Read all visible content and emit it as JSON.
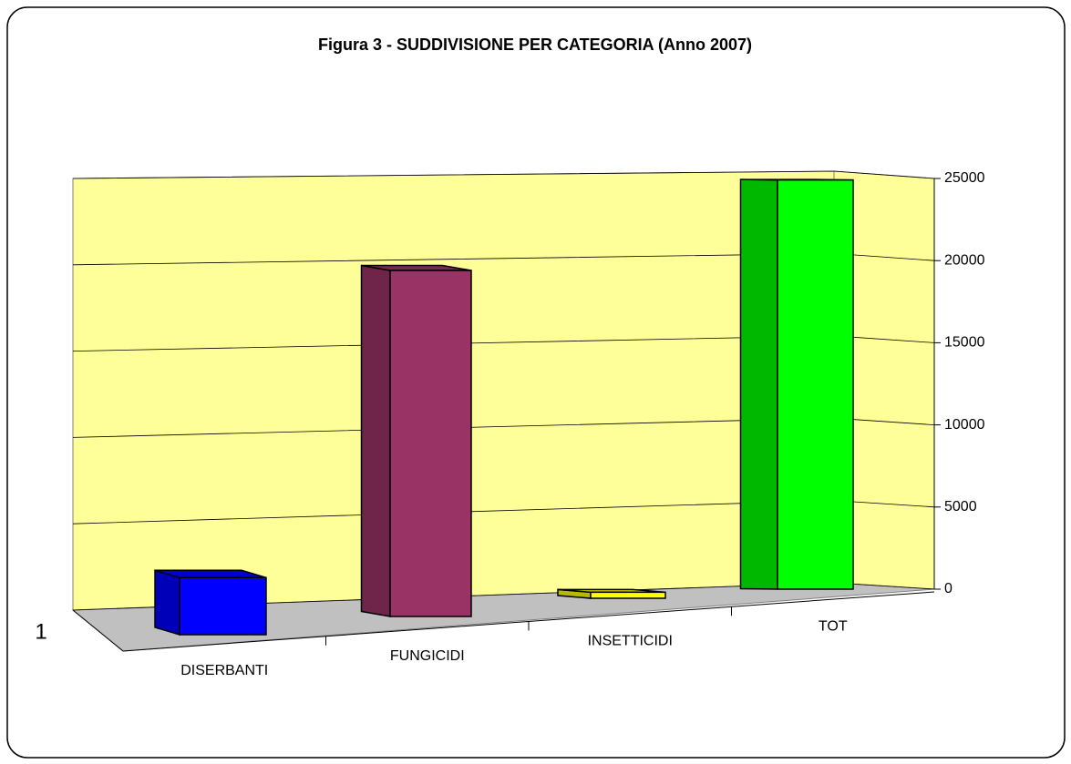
{
  "chart_data": {
    "type": "bar3d",
    "title": "Figura 3 - SUDDIVISIONE PER CATEGORIA (Anno 2007)",
    "depth_label": "1",
    "categories": [
      "DISERBANTI",
      "FUNGICIDI",
      "INSETTICIDI",
      "TOT"
    ],
    "values": [
      3300,
      20000,
      350,
      23650
    ],
    "colors": [
      "#0000ff",
      "#993366",
      "#ffff00",
      "#00ff00"
    ],
    "ylim": [
      0,
      25000
    ],
    "yticks": [
      0,
      5000,
      10000,
      15000,
      20000,
      25000
    ],
    "grid": true
  }
}
